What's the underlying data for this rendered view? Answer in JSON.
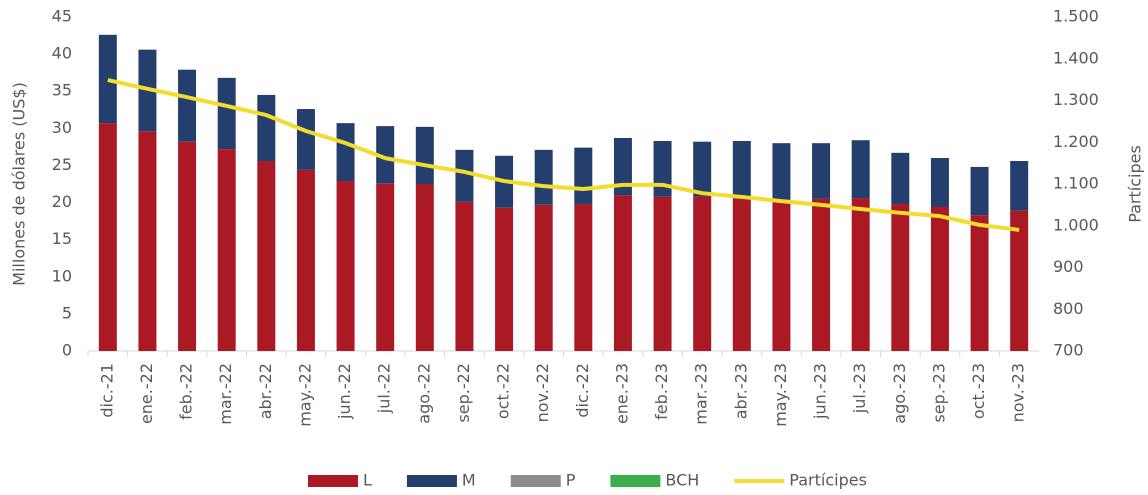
{
  "chart_data": {
    "type": "bar",
    "categories": [
      "dic.-21",
      "ene.-22",
      "feb.-22",
      "mar.-22",
      "abr.-22",
      "may.-22",
      "jun.-22",
      "jul.-22",
      "ago.-22",
      "sep.-22",
      "oct.-22",
      "nov.-22",
      "dic.-22",
      "ene.-23",
      "feb.-23",
      "mar.-23",
      "abr.-23",
      "may.-23",
      "jun.-23",
      "jul.-23",
      "ago.-23",
      "sep.-23",
      "oct.-23",
      "nov.-23"
    ],
    "series": [
      {
        "name": "L",
        "color": "#ab1a24",
        "values": [
          30.7,
          29.6,
          28.2,
          27.2,
          25.6,
          24.4,
          22.9,
          22.6,
          22.5,
          20.1,
          19.3,
          19.7,
          19.8,
          21.0,
          20.8,
          20.8,
          20.5,
          20.4,
          20.5,
          20.6,
          19.8,
          19.4,
          18.3,
          18.9
        ]
      },
      {
        "name": "M",
        "color": "#243f6e",
        "values": [
          11.9,
          11.0,
          9.7,
          9.6,
          8.9,
          8.2,
          7.8,
          7.7,
          7.7,
          7.0,
          7.0,
          7.4,
          7.6,
          7.7,
          7.5,
          7.4,
          7.8,
          7.6,
          7.5,
          7.8,
          6.9,
          6.6,
          6.5,
          6.7
        ]
      },
      {
        "name": "P",
        "color": "#8c8c8c",
        "values": [
          0,
          0,
          0,
          0,
          0,
          0,
          0,
          0,
          0,
          0,
          0,
          0,
          0,
          0,
          0,
          0,
          0,
          0,
          0,
          0,
          0,
          0,
          0,
          0
        ]
      },
      {
        "name": "BCH",
        "color": "#3cae49",
        "values": [
          0,
          0,
          0,
          0,
          0,
          0,
          0,
          0,
          0,
          0,
          0,
          0,
          0,
          0,
          0,
          0,
          0,
          0,
          0,
          0,
          0,
          0,
          0,
          0
        ]
      },
      {
        "name": "Partícipes",
        "color": "#f2dc2e",
        "type": "line",
        "axis": "y2",
        "values": [
          1349,
          1328,
          1308,
          1287,
          1265,
          1227,
          1198,
          1162,
          1145,
          1129,
          1107,
          1095,
          1088,
          1098,
          1098,
          1078,
          1069,
          1059,
          1050,
          1040,
          1031,
          1023,
          1002,
          990
        ]
      }
    ],
    "stacked": true,
    "y_label": "Millones de dólares (US$)",
    "y2_label": "Partícipes",
    "ylim": [
      0,
      45
    ],
    "yticks": [
      0,
      5,
      10,
      15,
      20,
      25,
      30,
      35,
      40,
      45
    ],
    "y2lim": [
      700,
      1500
    ],
    "y2ticks": [
      700,
      800,
      900,
      {
        "value": 1000,
        "label": "1.000"
      },
      {
        "value": 1100,
        "label": "1.100"
      },
      {
        "value": 1200,
        "label": "1.200"
      },
      {
        "value": 1300,
        "label": "1.300"
      },
      {
        "value": 1400,
        "label": "1.400"
      },
      {
        "value": 1500,
        "label": "1.500"
      }
    ],
    "legend": "bottom",
    "grid": false
  }
}
